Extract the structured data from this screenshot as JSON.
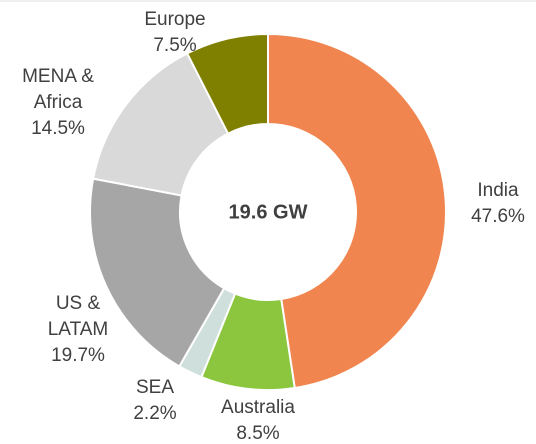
{
  "chart_data": {
    "type": "donut",
    "center_label": "19.6 GW",
    "categories": [
      "India",
      "Australia",
      "SEA",
      "US & LATAM",
      "MENA & Africa",
      "Europe"
    ],
    "values": [
      47.6,
      8.5,
      2.2,
      19.7,
      14.5,
      7.5
    ],
    "value_labels": [
      "47.6%",
      "8.5%",
      "2.2%",
      "19.7%",
      "14.5%",
      "7.5%"
    ],
    "colors": [
      "#f0854f",
      "#8cc63f",
      "#cfe0dc",
      "#a6a6a6",
      "#d9d9d9",
      "#7f7f00"
    ]
  }
}
